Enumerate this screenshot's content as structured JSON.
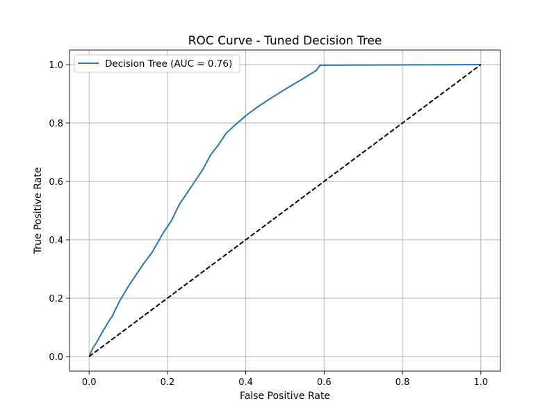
{
  "chart_data": {
    "type": "line",
    "title": "ROC Curve - Tuned Decision Tree",
    "xlabel": "False Positive Rate",
    "ylabel": "True Positive Rate",
    "xlim": [
      -0.05,
      1.05
    ],
    "ylim": [
      -0.05,
      1.05
    ],
    "xticks": [
      0.0,
      0.2,
      0.4,
      0.6,
      0.8,
      1.0
    ],
    "yticks": [
      0.0,
      0.2,
      0.4,
      0.6,
      0.8,
      1.0
    ],
    "xtick_labels": [
      "0.0",
      "0.2",
      "0.4",
      "0.6",
      "0.8",
      "1.0"
    ],
    "ytick_labels": [
      "0.0",
      "0.2",
      "0.4",
      "0.6",
      "0.8",
      "1.0"
    ],
    "grid": true,
    "legend_position": "top-left",
    "series": [
      {
        "name": "Decision Tree (AUC = 0.76)",
        "color": "#1f77b4",
        "style": "solid",
        "x": [
          0.0,
          0.01,
          0.02,
          0.03,
          0.05,
          0.06,
          0.065,
          0.08,
          0.1,
          0.11,
          0.14,
          0.16,
          0.19,
          0.2,
          0.21,
          0.23,
          0.25,
          0.27,
          0.29,
          0.3,
          0.31,
          0.33,
          0.35,
          0.37,
          0.4,
          0.43,
          0.47,
          0.5,
          0.55,
          0.58,
          0.585,
          0.59,
          0.8,
          1.0
        ],
        "y": [
          0.0,
          0.03,
          0.05,
          0.075,
          0.12,
          0.14,
          0.155,
          0.195,
          0.24,
          0.26,
          0.32,
          0.355,
          0.425,
          0.445,
          0.465,
          0.52,
          0.56,
          0.6,
          0.64,
          0.665,
          0.69,
          0.725,
          0.765,
          0.79,
          0.825,
          0.855,
          0.89,
          0.915,
          0.955,
          0.98,
          0.99,
          0.998,
          0.999,
          1.0
        ]
      },
      {
        "name": "",
        "color": "#000000",
        "style": "dashed",
        "x": [
          0.0,
          1.0
        ],
        "y": [
          0.0,
          1.0
        ]
      }
    ]
  }
}
